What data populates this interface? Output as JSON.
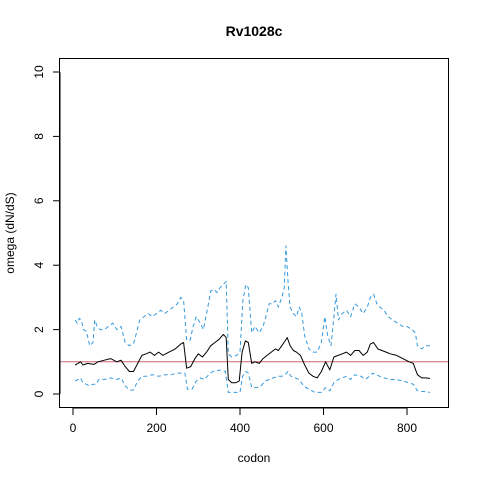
{
  "chart_data": {
    "type": "line",
    "title": "Rv1028c",
    "xlabel": "codon",
    "ylabel": "omega (dN/dS)",
    "xlim": [
      0,
      860
    ],
    "ylim": [
      0,
      10
    ],
    "x_ticks": [
      0,
      200,
      400,
      600,
      800
    ],
    "y_ticks": [
      0,
      2,
      4,
      6,
      8,
      10
    ],
    "grid": false,
    "reference_line": {
      "y": 1,
      "color": "#cc6677"
    },
    "series": [
      {
        "role": "mean",
        "color": "#000000",
        "style": "solid",
        "points": [
          [
            5,
            0.9
          ],
          [
            12,
            0.95
          ],
          [
            18,
            1.0
          ],
          [
            24,
            0.9
          ],
          [
            35,
            0.95
          ],
          [
            50,
            0.92
          ],
          [
            60,
            1.0
          ],
          [
            75,
            1.05
          ],
          [
            90,
            1.1
          ],
          [
            105,
            1.0
          ],
          [
            115,
            1.05
          ],
          [
            125,
            0.85
          ],
          [
            135,
            0.7
          ],
          [
            145,
            0.7
          ],
          [
            155,
            0.95
          ],
          [
            165,
            1.2
          ],
          [
            175,
            1.25
          ],
          [
            185,
            1.3
          ],
          [
            195,
            1.2
          ],
          [
            205,
            1.3
          ],
          [
            215,
            1.2
          ],
          [
            230,
            1.3
          ],
          [
            245,
            1.4
          ],
          [
            258,
            1.55
          ],
          [
            265,
            1.6
          ],
          [
            272,
            0.8
          ],
          [
            282,
            0.85
          ],
          [
            292,
            1.1
          ],
          [
            300,
            1.25
          ],
          [
            310,
            1.15
          ],
          [
            320,
            1.3
          ],
          [
            330,
            1.5
          ],
          [
            340,
            1.6
          ],
          [
            350,
            1.7
          ],
          [
            360,
            1.85
          ],
          [
            367,
            1.75
          ],
          [
            372,
            0.45
          ],
          [
            380,
            0.35
          ],
          [
            390,
            0.35
          ],
          [
            398,
            0.4
          ],
          [
            405,
            1.3
          ],
          [
            413,
            1.65
          ],
          [
            420,
            1.6
          ],
          [
            428,
            0.95
          ],
          [
            436,
            1.0
          ],
          [
            446,
            0.95
          ],
          [
            455,
            1.1
          ],
          [
            465,
            1.2
          ],
          [
            475,
            1.3
          ],
          [
            485,
            1.4
          ],
          [
            492,
            1.35
          ],
          [
            500,
            1.5
          ],
          [
            508,
            1.65
          ],
          [
            513,
            1.75
          ],
          [
            520,
            1.5
          ],
          [
            528,
            1.35
          ],
          [
            535,
            1.3
          ],
          [
            545,
            1.2
          ],
          [
            555,
            0.9
          ],
          [
            565,
            0.65
          ],
          [
            575,
            0.55
          ],
          [
            585,
            0.5
          ],
          [
            595,
            0.7
          ],
          [
            605,
            1.0
          ],
          [
            615,
            0.75
          ],
          [
            625,
            1.15
          ],
          [
            635,
            1.2
          ],
          [
            645,
            1.25
          ],
          [
            655,
            1.3
          ],
          [
            665,
            1.2
          ],
          [
            675,
            1.35
          ],
          [
            685,
            1.35
          ],
          [
            695,
            1.2
          ],
          [
            705,
            1.3
          ],
          [
            712,
            1.55
          ],
          [
            720,
            1.6
          ],
          [
            730,
            1.4
          ],
          [
            740,
            1.35
          ],
          [
            750,
            1.3
          ],
          [
            760,
            1.25
          ],
          [
            775,
            1.2
          ],
          [
            790,
            1.1
          ],
          [
            805,
            1.0
          ],
          [
            815,
            0.95
          ],
          [
            825,
            0.6
          ],
          [
            835,
            0.5
          ],
          [
            845,
            0.5
          ],
          [
            855,
            0.48
          ]
        ]
      },
      {
        "role": "upper",
        "color": "#3399dd",
        "style": "dashed",
        "points": [
          [
            5,
            2.3
          ],
          [
            10,
            2.2
          ],
          [
            15,
            2.35
          ],
          [
            20,
            2.3
          ],
          [
            25,
            2.0
          ],
          [
            32,
            1.95
          ],
          [
            40,
            1.5
          ],
          [
            48,
            1.6
          ],
          [
            52,
            2.3
          ],
          [
            58,
            2.1
          ],
          [
            65,
            2.0
          ],
          [
            75,
            2.0
          ],
          [
            85,
            2.1
          ],
          [
            95,
            2.2
          ],
          [
            105,
            2.0
          ],
          [
            115,
            2.1
          ],
          [
            125,
            1.6
          ],
          [
            135,
            1.5
          ],
          [
            145,
            1.55
          ],
          [
            155,
            2.05
          ],
          [
            160,
            2.3
          ],
          [
            170,
            2.4
          ],
          [
            180,
            2.5
          ],
          [
            190,
            2.4
          ],
          [
            200,
            2.5
          ],
          [
            210,
            2.6
          ],
          [
            220,
            2.5
          ],
          [
            230,
            2.6
          ],
          [
            240,
            2.7
          ],
          [
            250,
            2.8
          ],
          [
            258,
            3.0
          ],
          [
            265,
            2.9
          ],
          [
            272,
            1.7
          ],
          [
            280,
            1.65
          ],
          [
            288,
            2.1
          ],
          [
            295,
            2.4
          ],
          [
            305,
            2.2
          ],
          [
            312,
            2.0
          ],
          [
            320,
            2.5
          ],
          [
            330,
            3.2
          ],
          [
            338,
            3.25
          ],
          [
            345,
            3.15
          ],
          [
            352,
            3.3
          ],
          [
            360,
            3.4
          ],
          [
            367,
            3.5
          ],
          [
            372,
            1.25
          ],
          [
            380,
            1.15
          ],
          [
            392,
            1.2
          ],
          [
            400,
            1.3
          ],
          [
            407,
            2.9
          ],
          [
            414,
            3.4
          ],
          [
            420,
            3.3
          ],
          [
            428,
            1.9
          ],
          [
            436,
            2.1
          ],
          [
            446,
            1.9
          ],
          [
            455,
            2.1
          ],
          [
            462,
            2.4
          ],
          [
            470,
            2.8
          ],
          [
            478,
            2.8
          ],
          [
            485,
            2.9
          ],
          [
            492,
            2.7
          ],
          [
            500,
            3.0
          ],
          [
            506,
            3.3
          ],
          [
            510,
            4.6
          ],
          [
            515,
            3.5
          ],
          [
            520,
            2.7
          ],
          [
            528,
            2.5
          ],
          [
            535,
            2.4
          ],
          [
            542,
            2.7
          ],
          [
            548,
            2.5
          ],
          [
            555,
            1.8
          ],
          [
            565,
            1.4
          ],
          [
            575,
            1.3
          ],
          [
            585,
            1.3
          ],
          [
            595,
            1.6
          ],
          [
            603,
            2.4
          ],
          [
            610,
            1.8
          ],
          [
            618,
            1.5
          ],
          [
            625,
            2.4
          ],
          [
            630,
            3.1
          ],
          [
            636,
            2.3
          ],
          [
            645,
            2.5
          ],
          [
            655,
            2.6
          ],
          [
            665,
            2.4
          ],
          [
            675,
            2.8
          ],
          [
            685,
            2.7
          ],
          [
            695,
            2.5
          ],
          [
            705,
            2.7
          ],
          [
            712,
            3.0
          ],
          [
            720,
            3.1
          ],
          [
            728,
            2.8
          ],
          [
            735,
            2.7
          ],
          [
            745,
            2.6
          ],
          [
            755,
            2.4
          ],
          [
            765,
            2.3
          ],
          [
            778,
            2.2
          ],
          [
            790,
            2.1
          ],
          [
            800,
            2.1
          ],
          [
            812,
            2.0
          ],
          [
            820,
            1.9
          ],
          [
            825,
            1.5
          ],
          [
            835,
            1.4
          ],
          [
            845,
            1.5
          ],
          [
            855,
            1.5
          ]
        ]
      },
      {
        "role": "lower",
        "color": "#3399dd",
        "style": "dashed",
        "points": [
          [
            5,
            0.4
          ],
          [
            12,
            0.45
          ],
          [
            18,
            0.5
          ],
          [
            24,
            0.35
          ],
          [
            32,
            0.3
          ],
          [
            40,
            0.25
          ],
          [
            48,
            0.3
          ],
          [
            55,
            0.3
          ],
          [
            62,
            0.45
          ],
          [
            75,
            0.45
          ],
          [
            90,
            0.5
          ],
          [
            105,
            0.45
          ],
          [
            115,
            0.5
          ],
          [
            125,
            0.25
          ],
          [
            135,
            0.12
          ],
          [
            145,
            0.12
          ],
          [
            155,
            0.4
          ],
          [
            165,
            0.55
          ],
          [
            175,
            0.55
          ],
          [
            190,
            0.6
          ],
          [
            205,
            0.55
          ],
          [
            220,
            0.6
          ],
          [
            235,
            0.6
          ],
          [
            250,
            0.65
          ],
          [
            260,
            0.65
          ],
          [
            268,
            0.65
          ],
          [
            274,
            0.15
          ],
          [
            285,
            0.15
          ],
          [
            295,
            0.4
          ],
          [
            305,
            0.5
          ],
          [
            315,
            0.45
          ],
          [
            325,
            0.6
          ],
          [
            335,
            0.7
          ],
          [
            345,
            0.72
          ],
          [
            355,
            0.75
          ],
          [
            365,
            0.7
          ],
          [
            372,
            0.05
          ],
          [
            390,
            0.05
          ],
          [
            400,
            0.05
          ],
          [
            406,
            0.55
          ],
          [
            414,
            0.7
          ],
          [
            420,
            0.65
          ],
          [
            428,
            0.2
          ],
          [
            440,
            0.2
          ],
          [
            450,
            0.25
          ],
          [
            460,
            0.4
          ],
          [
            470,
            0.45
          ],
          [
            480,
            0.5
          ],
          [
            490,
            0.55
          ],
          [
            500,
            0.55
          ],
          [
            508,
            0.6
          ],
          [
            515,
            0.7
          ],
          [
            522,
            0.55
          ],
          [
            532,
            0.5
          ],
          [
            542,
            0.45
          ],
          [
            552,
            0.25
          ],
          [
            565,
            0.15
          ],
          [
            580,
            0.05
          ],
          [
            595,
            0.05
          ],
          [
            605,
            0.2
          ],
          [
            615,
            0.1
          ],
          [
            625,
            0.35
          ],
          [
            635,
            0.45
          ],
          [
            645,
            0.5
          ],
          [
            655,
            0.55
          ],
          [
            665,
            0.45
          ],
          [
            675,
            0.6
          ],
          [
            690,
            0.55
          ],
          [
            700,
            0.45
          ],
          [
            710,
            0.55
          ],
          [
            718,
            0.65
          ],
          [
            725,
            0.6
          ],
          [
            735,
            0.55
          ],
          [
            745,
            0.5
          ],
          [
            760,
            0.45
          ],
          [
            775,
            0.45
          ],
          [
            790,
            0.4
          ],
          [
            805,
            0.35
          ],
          [
            815,
            0.3
          ],
          [
            825,
            0.1
          ],
          [
            835,
            0.08
          ],
          [
            845,
            0.07
          ],
          [
            855,
            0.05
          ]
        ]
      }
    ]
  }
}
